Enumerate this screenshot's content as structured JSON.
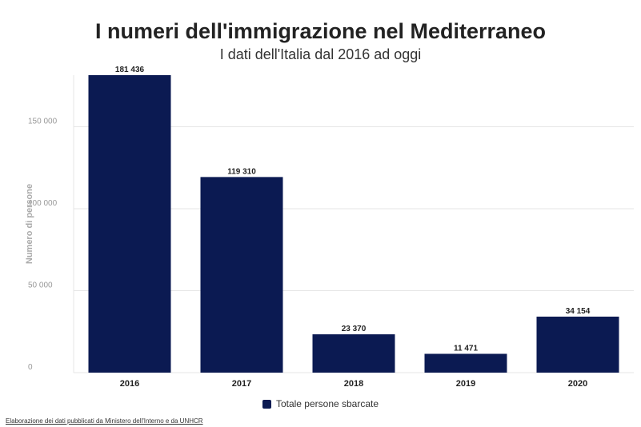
{
  "colors": {
    "bar": "#0b1a52",
    "grid": "#e6e6e6",
    "tick": "#999999",
    "label": "#222222"
  },
  "legend": {
    "label": "Totale persone sbarcate"
  },
  "source_text": "Elaborazione dei dati pubblicati da Ministero dell'Interno e da UNHCR",
  "chart_data": {
    "type": "bar",
    "title": "I numeri dell'immigrazione nel Mediterraneo",
    "subtitle": "I dati dell'Italia dal 2016 ad oggi",
    "xlabel": "",
    "ylabel": "Numero di persone",
    "categories": [
      "2016",
      "2017",
      "2018",
      "2019",
      "2020"
    ],
    "series": [
      {
        "name": "Totale persone sbarcate",
        "values": [
          181436,
          119310,
          23370,
          11471,
          34154
        ],
        "value_labels": [
          "181 436",
          "119 310",
          "23 370",
          "11 471",
          "34 154"
        ]
      }
    ],
    "ylim": [
      0,
      181436
    ],
    "yticks": [
      0,
      50000,
      100000,
      150000
    ],
    "ytick_labels": [
      "0",
      "50 000",
      "100 000",
      "150 000"
    ],
    "grid": true,
    "legend_position": "bottom"
  }
}
